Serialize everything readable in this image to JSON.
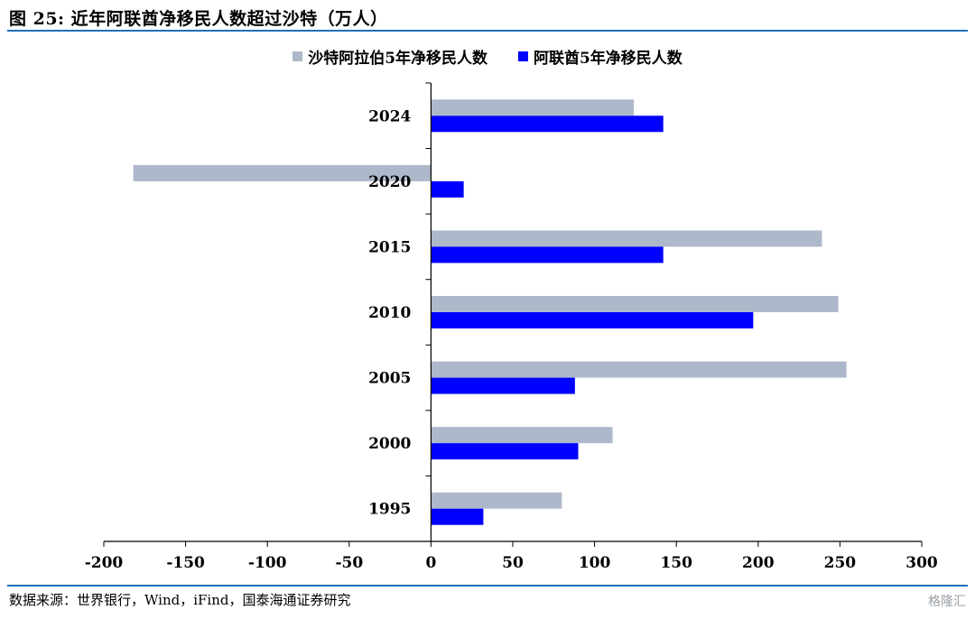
{
  "header": {
    "title": "图 25:  近年阿联酋净移民人数超过沙特（万人）"
  },
  "footer": {
    "source": "数据来源：世界银行，Wind，iFind，国泰海通证券研究",
    "watermark": "格隆汇"
  },
  "colors": {
    "saudi": "#adb9ca",
    "uae": "#0000ff",
    "rule": "#1f6fb8"
  },
  "chart_data": {
    "type": "bar",
    "orientation": "horizontal",
    "title": "",
    "categories": [
      "2024",
      "2020",
      "2015",
      "2010",
      "2005",
      "2000",
      "1995"
    ],
    "series": [
      {
        "name": "沙特阿拉伯5年净移民人数",
        "values": [
          124,
          -182,
          239,
          249,
          254,
          111,
          80
        ]
      },
      {
        "name": "阿联酋5年净移民人数",
        "values": [
          142,
          20,
          142,
          197,
          88,
          90,
          32
        ]
      }
    ],
    "xlim": [
      -200,
      300
    ],
    "xticks": [
      "-200",
      "-150",
      "-100",
      "-50",
      "0",
      "50",
      "100",
      "150",
      "200",
      "250",
      "300"
    ],
    "legend_position": "top-center",
    "grid": false
  }
}
